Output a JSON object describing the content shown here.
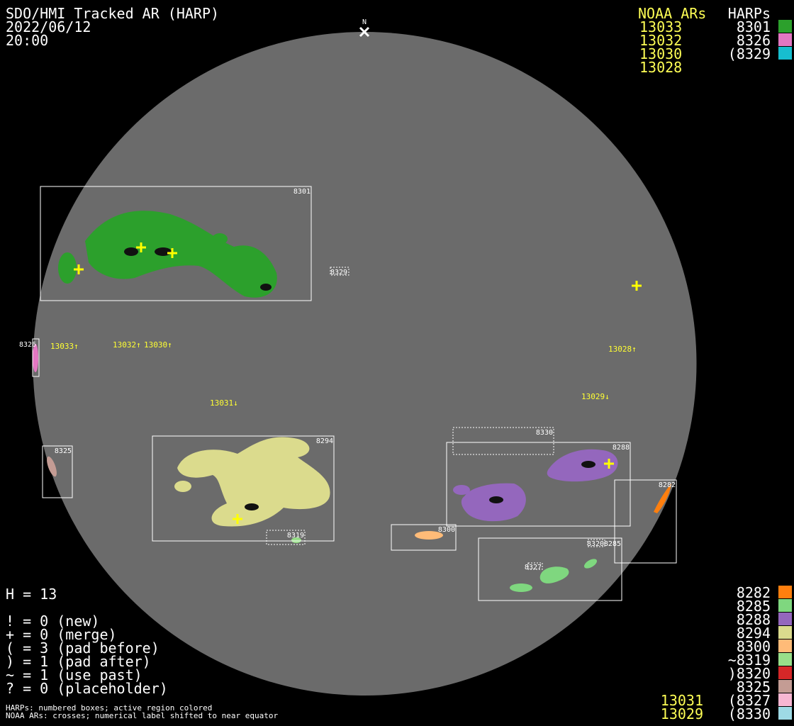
{
  "header": {
    "title": "SDO/HMI Tracked AR (HARP)",
    "date": "2022/06/12",
    "time": "20:00"
  },
  "north_label": "N",
  "legend_top": {
    "noaa_header": "NOAA ARs",
    "harp_header": "HARPs",
    "noaa": [
      "13033",
      "13032",
      "13030",
      "13028"
    ],
    "harps": [
      {
        "label": "8301",
        "color": "#2ca02c"
      },
      {
        "label": "8326",
        "color": "#e377c2"
      },
      {
        "label": "(8329",
        "color": "#17becf"
      }
    ]
  },
  "stats": {
    "count": "H = 13",
    "lines": [
      "! = 0 (new)",
      "+ = 0 (merge)",
      "( = 3 (pad before)",
      ") = 1 (pad after)",
      "~ = 1 (use past)",
      "? = 0 (placeholder)"
    ]
  },
  "footnotes": [
    "HARPs: numbered boxes; active region colored",
    "NOAA ARs: crosses; numerical label shifted to near equator"
  ],
  "legend_bottom": {
    "harps": [
      {
        "label": "8282",
        "color": "#ff7f0e"
      },
      {
        "label": "8285",
        "color": "#7fd77f"
      },
      {
        "label": "8288",
        "color": "#9467bd"
      },
      {
        "label": "8294",
        "color": "#dbdb8d"
      },
      {
        "label": "8300",
        "color": "#ffbb78"
      },
      {
        "label": "~8319",
        "color": "#98df8a"
      },
      {
        "label": ")8320",
        "color": "#d62728"
      },
      {
        "label": "8325",
        "color": "#c49c94"
      },
      {
        "label": "(8327",
        "color": "#f7b6d2"
      },
      {
        "label": "(8330",
        "color": "#9edae5"
      }
    ],
    "noaa": [
      "13031",
      "13029"
    ]
  },
  "disk": {
    "harp_labels": [
      "8301",
      "8329",
      "8326",
      "8325",
      "8294",
      "8319",
      "8300",
      "8330",
      "8288",
      "8282",
      "8320",
      "8285",
      "8327"
    ],
    "noaa_labels": [
      "13033↑",
      "13032↑",
      "13030↑",
      "13028↑",
      "13029↓",
      "13031↓"
    ]
  }
}
